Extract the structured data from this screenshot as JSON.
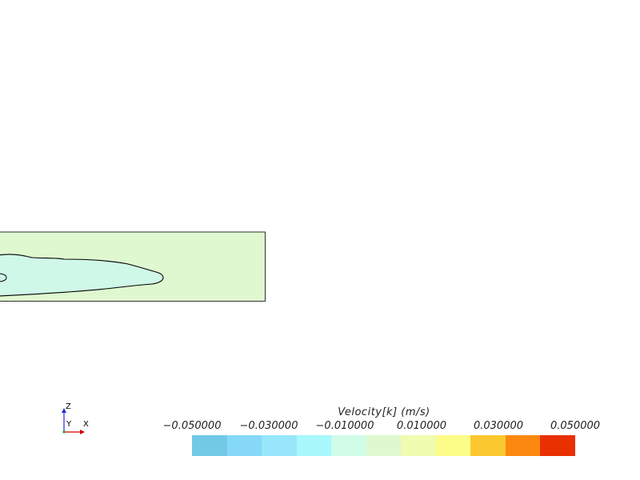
{
  "viewer": {
    "background": "#ffffff"
  },
  "domain_plot": {
    "fill_color": "#e0f8d0",
    "inner_region_color": "#cff8e8",
    "outline_color": "#000000"
  },
  "triad": {
    "z_label": "Z",
    "y_label": "Y",
    "x_label": "X",
    "x_axis_color": "#d40000",
    "z_axis_color": "#2a2ad4",
    "origin_color": "#22aa22"
  },
  "colorbar": {
    "title": "Velocity[k] (m/s)",
    "tick_labels": [
      "−0.050000",
      "−0.030000",
      "−0.010000",
      "0.010000",
      "0.030000",
      "0.050000"
    ],
    "colors": [
      "#72c9e6",
      "#86d8f8",
      "#98e6fc",
      "#a8f8fc",
      "#d0fce8",
      "#e0f8d0",
      "#f0fcb0",
      "#fcfc88",
      "#fcc830",
      "#fc8810",
      "#e83000"
    ]
  }
}
